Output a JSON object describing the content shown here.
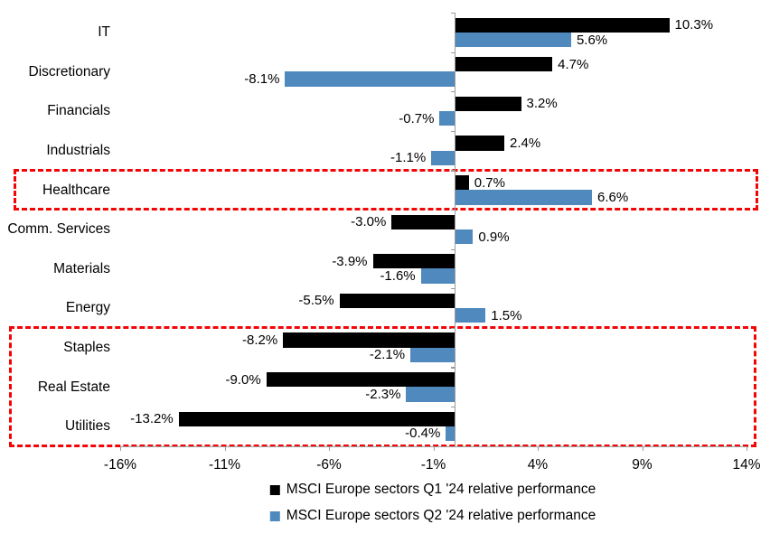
{
  "chart_data": {
    "type": "bar",
    "orientation": "horizontal",
    "title": "",
    "xlabel": "",
    "ylabel": "",
    "categories": [
      "IT",
      "Discretionary",
      "Financials",
      "Industrials",
      "Healthcare",
      "Comm. Services",
      "Materials",
      "Energy",
      "Staples",
      "Real Estate",
      "Utilities"
    ],
    "series": [
      {
        "name": "MSCI Europe sectors Q1 '24 relative performance",
        "color": "#000000",
        "values": [
          10.3,
          4.7,
          3.2,
          2.4,
          0.7,
          -3.0,
          -3.9,
          -5.5,
          -8.2,
          -9.0,
          -13.2
        ]
      },
      {
        "name": "MSCI Europe sectors Q2 '24 relative performance",
        "color": "#5089be",
        "values": [
          5.6,
          -8.1,
          -0.7,
          -1.1,
          6.6,
          0.9,
          -1.6,
          1.5,
          -2.1,
          -2.3,
          -0.4
        ]
      }
    ],
    "value_labels": {
      "q1": [
        "10.3%",
        "4.7%",
        "3.2%",
        "2.4%",
        "0.7%",
        "-3.0%",
        "-3.9%",
        "-5.5%",
        "-8.2%",
        "-9.0%",
        "-13.2%"
      ],
      "q2": [
        "5.6%",
        "-8.1%",
        "-0.7%",
        "-1.1%",
        "6.6%",
        "0.9%",
        "-1.6%",
        "1.5%",
        "-2.1%",
        "-2.3%",
        "-0.4%"
      ]
    },
    "xlim": [
      -16,
      14
    ],
    "x_ticks": [
      "-16%",
      "-11%",
      "-6%",
      "-1%",
      "4%",
      "9%",
      "14%"
    ],
    "x_tick_values": [
      -16,
      -11,
      -6,
      -1,
      4,
      9,
      14
    ],
    "grid": false,
    "legend_position": "bottom",
    "axis_color": "#9b9b9b",
    "highlight_color": "#f30505",
    "annotations": [
      {
        "type": "dashed-box",
        "name": "highlight-box-healthcare",
        "rows": [
          "Healthcare"
        ]
      },
      {
        "type": "dashed-box",
        "name": "highlight-box-defensives",
        "rows": [
          "Staples",
          "Real Estate",
          "Utilities"
        ]
      }
    ]
  }
}
